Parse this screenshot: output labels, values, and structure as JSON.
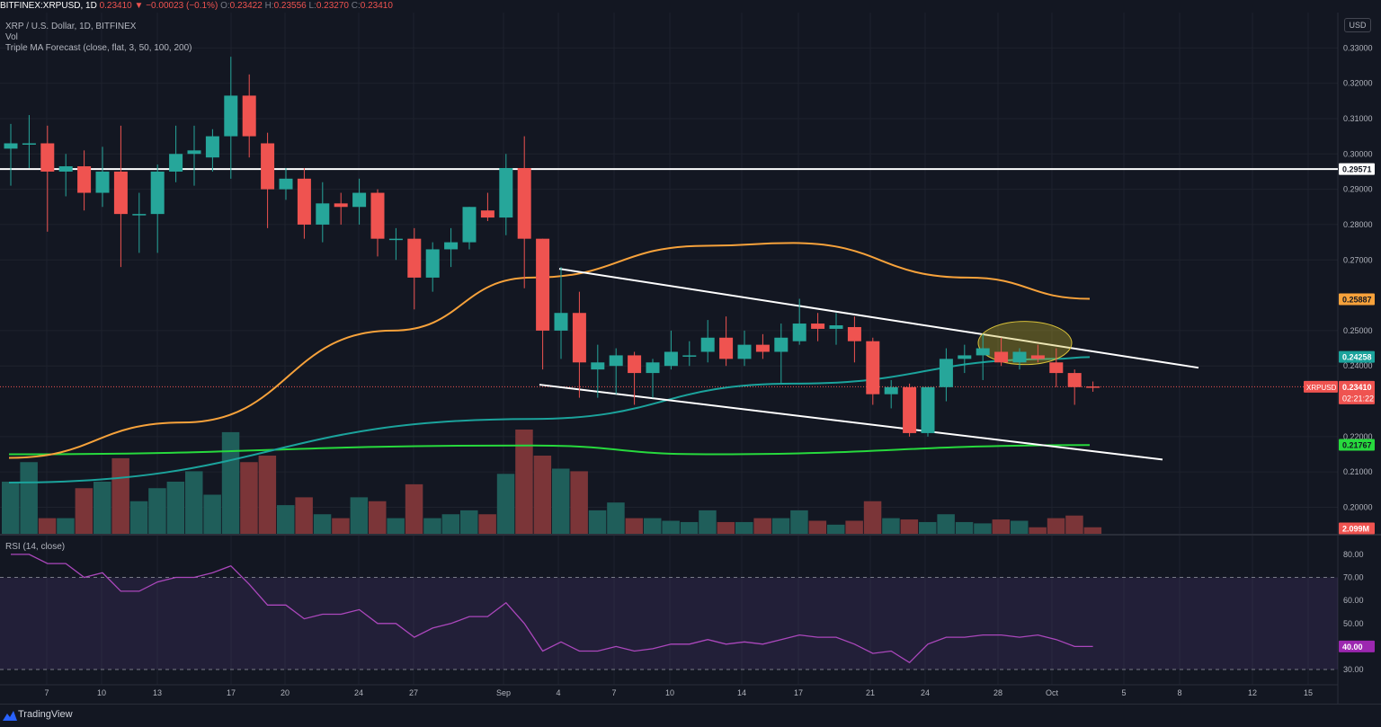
{
  "header": {
    "symbol": "BITFINEX:XRPUSD, 1D",
    "last": "0.23410",
    "change": "−0.00023 (−0.1%)",
    "o_label": "O:",
    "o": "0.23422",
    "h_label": "H:",
    "h": "0.23556",
    "l_label": "L:",
    "l": "0.23270",
    "c_label": "C:",
    "c": "0.23410"
  },
  "legend": {
    "title": "XRP / U.S. Dollar, 1D, BITFINEX",
    "vol": "Vol",
    "ma": "Triple MA Forecast (close, flat, 3, 50, 100, 200)",
    "rsi": "RSI (14, close)"
  },
  "currency_button": "USD",
  "footer": {
    "brand": "TradingView"
  },
  "colors": {
    "up": "#26a69a",
    "down": "#ef5350",
    "background": "#131722",
    "ma50": "#f7a23b",
    "ma100": "#1ba39c",
    "ma200": "#27d93d",
    "rsi": "#ab47bc"
  },
  "chart_data": {
    "type": "candlestick",
    "price_axis": {
      "ticks": [
        "0.33000",
        "0.32000",
        "0.31000",
        "0.30000",
        "0.29000",
        "0.28000",
        "0.27000",
        "0.25000",
        "0.24000",
        "0.22000",
        "0.21000",
        "0.20000"
      ],
      "range": [
        0.1925,
        0.34
      ]
    },
    "x_axis": {
      "ticks": [
        "7",
        "10",
        "13",
        "17",
        "20",
        "24",
        "27",
        "Sep",
        "4",
        "7",
        "10",
        "14",
        "17",
        "21",
        "24",
        "28",
        "Oct",
        "5",
        "8",
        "12",
        "15"
      ]
    },
    "candles": [
      [
        0.3015,
        0.3085,
        0.291,
        0.303
      ],
      [
        0.303,
        0.311,
        0.296,
        0.303
      ],
      [
        0.303,
        0.308,
        0.278,
        0.295
      ],
      [
        0.295,
        0.3,
        0.288,
        0.2965
      ],
      [
        0.2965,
        0.301,
        0.284,
        0.289
      ],
      [
        0.289,
        0.302,
        0.285,
        0.295
      ],
      [
        0.295,
        0.308,
        0.268,
        0.283
      ],
      [
        0.283,
        0.289,
        0.272,
        0.283
      ],
      [
        0.283,
        0.297,
        0.272,
        0.295
      ],
      [
        0.295,
        0.308,
        0.292,
        0.3
      ],
      [
        0.3,
        0.308,
        0.291,
        0.301
      ],
      [
        0.299,
        0.307,
        0.295,
        0.305
      ],
      [
        0.305,
        0.3275,
        0.293,
        0.3165
      ],
      [
        0.3165,
        0.3225,
        0.299,
        0.305
      ],
      [
        0.303,
        0.306,
        0.279,
        0.29
      ],
      [
        0.29,
        0.296,
        0.287,
        0.293
      ],
      [
        0.293,
        0.296,
        0.276,
        0.28
      ],
      [
        0.28,
        0.292,
        0.275,
        0.286
      ],
      [
        0.286,
        0.289,
        0.28,
        0.285
      ],
      [
        0.285,
        0.293,
        0.28,
        0.289
      ],
      [
        0.289,
        0.29,
        0.271,
        0.276
      ],
      [
        0.276,
        0.279,
        0.27,
        0.276
      ],
      [
        0.276,
        0.279,
        0.256,
        0.265
      ],
      [
        0.265,
        0.275,
        0.261,
        0.273
      ],
      [
        0.273,
        0.279,
        0.268,
        0.275
      ],
      [
        0.275,
        0.285,
        0.273,
        0.285
      ],
      [
        0.284,
        0.289,
        0.281,
        0.282
      ],
      [
        0.282,
        0.3,
        0.277,
        0.296
      ],
      [
        0.296,
        0.305,
        0.262,
        0.276
      ],
      [
        0.276,
        0.276,
        0.239,
        0.25
      ],
      [
        0.25,
        0.268,
        0.242,
        0.255
      ],
      [
        0.255,
        0.261,
        0.231,
        0.241
      ],
      [
        0.239,
        0.246,
        0.231,
        0.241
      ],
      [
        0.24,
        0.245,
        0.232,
        0.243
      ],
      [
        0.243,
        0.244,
        0.229,
        0.238
      ],
      [
        0.238,
        0.242,
        0.231,
        0.241
      ],
      [
        0.24,
        0.25,
        0.239,
        0.244
      ],
      [
        0.243,
        0.247,
        0.24,
        0.243
      ],
      [
        0.244,
        0.253,
        0.241,
        0.248
      ],
      [
        0.248,
        0.254,
        0.24,
        0.242
      ],
      [
        0.242,
        0.25,
        0.24,
        0.246
      ],
      [
        0.246,
        0.249,
        0.242,
        0.244
      ],
      [
        0.244,
        0.252,
        0.235,
        0.248
      ],
      [
        0.247,
        0.259,
        0.246,
        0.252
      ],
      [
        0.252,
        0.255,
        0.247,
        0.2505
      ],
      [
        0.2505,
        0.255,
        0.246,
        0.2515
      ],
      [
        0.251,
        0.254,
        0.241,
        0.247
      ],
      [
        0.247,
        0.248,
        0.229,
        0.232
      ],
      [
        0.232,
        0.236,
        0.228,
        0.234
      ],
      [
        0.234,
        0.235,
        0.22,
        0.221
      ],
      [
        0.221,
        0.234,
        0.22,
        0.234
      ],
      [
        0.234,
        0.245,
        0.23,
        0.242
      ],
      [
        0.242,
        0.246,
        0.238,
        0.243
      ],
      [
        0.243,
        0.249,
        0.236,
        0.245
      ],
      [
        0.244,
        0.248,
        0.24,
        0.241
      ],
      [
        0.241,
        0.245,
        0.239,
        0.244
      ],
      [
        0.243,
        0.246,
        0.241,
        0.242
      ],
      [
        0.241,
        0.245,
        0.234,
        0.238
      ],
      [
        0.238,
        0.239,
        0.229,
        0.234
      ],
      [
        0.2342,
        0.2356,
        0.2327,
        0.2341
      ]
    ],
    "volume": [
      0.4,
      0.55,
      0.12,
      0.12,
      0.35,
      0.4,
      0.58,
      0.25,
      0.35,
      0.4,
      0.48,
      0.3,
      0.78,
      0.55,
      0.6,
      0.22,
      0.28,
      0.15,
      0.12,
      0.28,
      0.25,
      0.12,
      0.38,
      0.12,
      0.15,
      0.18,
      0.15,
      0.46,
      0.8,
      0.6,
      0.5,
      0.48,
      0.18,
      0.24,
      0.12,
      0.12,
      0.1,
      0.09,
      0.18,
      0.09,
      0.09,
      0.12,
      0.12,
      0.18,
      0.1,
      0.07,
      0.1,
      0.25,
      0.12,
      0.11,
      0.09,
      0.15,
      0.09,
      0.08,
      0.11,
      0.1,
      0.05,
      0.12,
      0.14,
      0.05
    ],
    "ma50": [
      [
        0.214,
        0.0
      ],
      [
        0.224,
        0.1
      ],
      [
        0.25,
        0.22
      ],
      [
        0.265,
        0.3
      ],
      [
        0.274,
        0.4
      ],
      [
        0.2748,
        0.45
      ],
      [
        0.265,
        0.55
      ],
      [
        0.259,
        0.62
      ]
    ],
    "ma100": [
      [
        0.207,
        0.0
      ],
      [
        0.225,
        0.3
      ],
      [
        0.235,
        0.45
      ],
      [
        0.242,
        0.6
      ],
      [
        0.2425,
        0.62
      ]
    ],
    "ma200": [
      [
        0.215,
        0.0
      ],
      [
        0.2175,
        0.3
      ],
      [
        0.215,
        0.4
      ],
      [
        0.2176,
        0.62
      ]
    ],
    "resistance_value": 0.29571,
    "last_value": 0.2341,
    "labels": {
      "resistance": "0.29571",
      "ma50": "0.25887",
      "ma100": "0.24258",
      "last_name": "XRPUSD",
      "last": "0.23410",
      "countdown": "02:21:22",
      "ma200": "0.21767",
      "volume": "2.099M"
    },
    "rsi": {
      "ticks": [
        "80.00",
        "70.00",
        "60.00",
        "50.00",
        "40.00",
        "30.00"
      ],
      "levels": [
        70,
        30
      ],
      "values": [
        80,
        80,
        76,
        76,
        70,
        72,
        64,
        64,
        68,
        70,
        70,
        72,
        75,
        67,
        58,
        58,
        52,
        54,
        54,
        56,
        50,
        50,
        44,
        48,
        50,
        53,
        53,
        59,
        50,
        38,
        42,
        38,
        38,
        40,
        38,
        39,
        41,
        41,
        43,
        41,
        42,
        41,
        43,
        45,
        44,
        44,
        41,
        37,
        38,
        33,
        41,
        44,
        44,
        45,
        45,
        44,
        45,
        43,
        40,
        40
      ]
    }
  }
}
